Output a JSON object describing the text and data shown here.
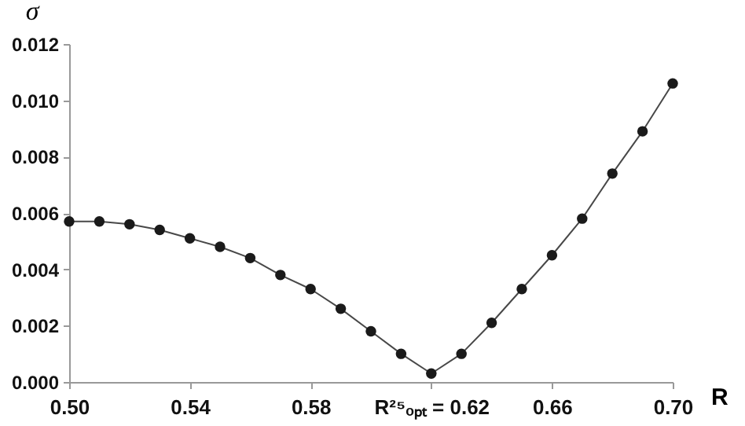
{
  "chart_data": {
    "type": "line",
    "xlabel": "R",
    "ylabel": "σ",
    "x": [
      0.5,
      0.51,
      0.52,
      0.53,
      0.54,
      0.55,
      0.56,
      0.57,
      0.58,
      0.59,
      0.6,
      0.61,
      0.62,
      0.63,
      0.64,
      0.65,
      0.66,
      0.67,
      0.68,
      0.69,
      0.7
    ],
    "series": [
      {
        "color": "#1a1a1a",
        "values": [
          0.0057,
          0.0057,
          0.0056,
          0.0054,
          0.0051,
          0.0048,
          0.0044,
          0.0038,
          0.0033,
          0.0026,
          0.0018,
          0.001,
          0.0003,
          0.001,
          0.0021,
          0.0033,
          0.0045,
          0.0058,
          0.0074,
          0.0089,
          0.0106
        ]
      }
    ],
    "xlim": [
      0.5,
      0.7
    ],
    "xticks": [
      {
        "value": 0.5,
        "label": "0.50"
      },
      0.54,
      0.58,
      {
        "value": 0.62,
        "label": "R²⁵ₒₚₜ = 0.62"
      },
      0.66,
      {
        "value": 0.7,
        "label": "0.70"
      }
    ],
    "ylim": [
      0,
      0.012
    ],
    "yticks": [
      {
        "value": 0,
        "label": "0.000"
      },
      {
        "value": 0.002,
        "label": "0.002"
      },
      {
        "value": 0.004,
        "label": "0.004"
      },
      {
        "value": 0.006,
        "label": "0.006"
      },
      {
        "value": 0.008,
        "label": "0.008"
      },
      {
        "value": 0.01,
        "label": "0.010"
      },
      {
        "value": 0.012,
        "label": "0.012"
      }
    ],
    "grid": false,
    "marker": "circle",
    "line_style": "solid"
  }
}
